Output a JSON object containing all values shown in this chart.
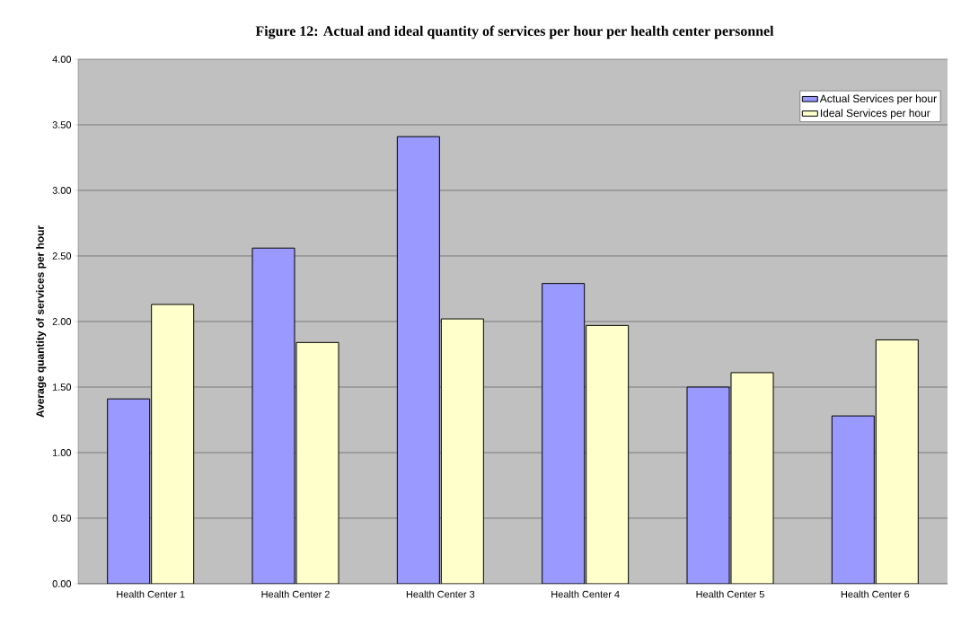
{
  "chart_data": {
    "type": "bar",
    "title": "Figure 12: Actual and ideal quantity of services per hour per health center personnel",
    "ylabel": "Average quantity of services per hour",
    "categories": [
      "Health Center 1",
      "Health Center 2",
      "Health Center 3",
      "Health Center 4",
      "Health Center 5",
      "Health Center 6"
    ],
    "series": [
      {
        "name": "Actual Services per hour",
        "color": "#9999ff",
        "values": [
          1.41,
          2.56,
          3.41,
          2.29,
          1.5,
          1.28
        ]
      },
      {
        "name": "Ideal Services per hour",
        "color": "#ffffcc",
        "values": [
          2.13,
          1.84,
          2.02,
          1.97,
          1.61,
          1.86
        ]
      }
    ],
    "ylim": [
      0,
      4
    ],
    "yticks": [
      {
        "value": 0,
        "label": "0.00"
      },
      {
        "value": 0.5,
        "label": "0.50"
      },
      {
        "value": 1,
        "label": "1.00"
      },
      {
        "value": 1.5,
        "label": "1.50"
      },
      {
        "value": 2,
        "label": "2.00"
      },
      {
        "value": 2.5,
        "label": "2.50"
      },
      {
        "value": 3,
        "label": "3.00"
      },
      {
        "value": 3.5,
        "label": "3.50"
      },
      {
        "value": 4,
        "label": "4.00"
      }
    ],
    "grid": "y",
    "legend": "top right"
  }
}
